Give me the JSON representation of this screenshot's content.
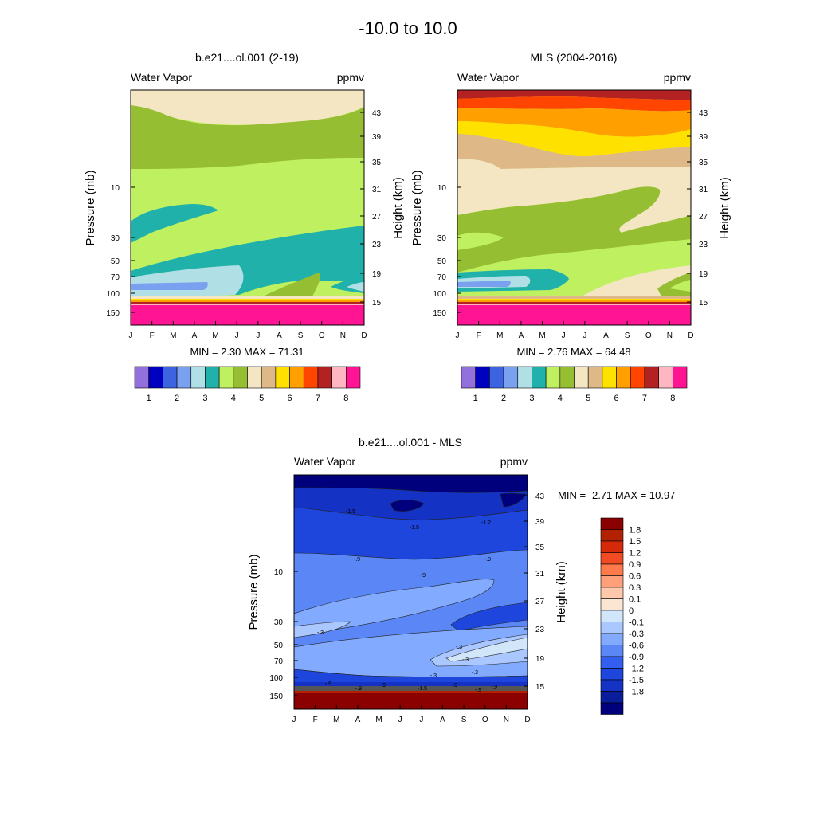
{
  "figure": {
    "title": "-10.0 to  10.0"
  },
  "chart_data": [
    {
      "type": "heatmap",
      "title": "b.e21....ol.001 (2-19)",
      "left_label": "Water Vapor",
      "right_label": "ppmv",
      "ylabel": "Pressure (mb)",
      "ylabel_right": "Height (km)",
      "x": [
        "J",
        "F",
        "M",
        "A",
        "M",
        "J",
        "J",
        "A",
        "S",
        "O",
        "N",
        "D"
      ],
      "pressure_ticks": [
        "10",
        "30",
        "50",
        "70",
        "100",
        "150"
      ],
      "height_ticks": [
        "43",
        "39",
        "35",
        "31",
        "27",
        "23",
        "19",
        "15"
      ],
      "stats": "MIN =   2.30  MAX =  71.31",
      "colorbar": {
        "colors": [
          "#9370db",
          "#0000c0",
          "#3c64e0",
          "#7aa0f0",
          "#b0e0e6",
          "#20b2aa",
          "#bff060",
          "#96be32",
          "#f5e6c3",
          "#deb887",
          "#ffe100",
          "#ffa000",
          "#ff4500",
          "#b22222",
          "#ffb6c1",
          "#ff1493"
        ],
        "labels": [
          "1",
          "2",
          "3",
          "4",
          "5",
          "6",
          "7",
          "8"
        ]
      },
      "bands": [
        {
          "level": "5.0",
          "color": "#f5e6c3"
        },
        {
          "level": "4.5",
          "color": "#96be32"
        },
        {
          "level": "4.0",
          "color": "#bff060"
        },
        {
          "level": "3.5",
          "color": "#20b2aa"
        },
        {
          "level": "3.0",
          "color": "#b0e0e6"
        },
        {
          "level": "2.5",
          "color": "#7aa0f0"
        }
      ]
    },
    {
      "type": "heatmap",
      "title": "MLS (2004-2016)",
      "left_label": "Water Vapor",
      "right_label": "ppmv",
      "ylabel": "Pressure (mb)",
      "ylabel_right": "Height (km)",
      "x": [
        "J",
        "F",
        "M",
        "A",
        "M",
        "J",
        "J",
        "A",
        "S",
        "O",
        "N",
        "D"
      ],
      "pressure_ticks": [
        "10",
        "30",
        "50",
        "70",
        "100",
        "150"
      ],
      "height_ticks": [
        "43",
        "39",
        "35",
        "31",
        "27",
        "23",
        "19",
        "15"
      ],
      "stats": "MIN =   2.76  MAX =  64.48",
      "colorbar": {
        "colors": [
          "#9370db",
          "#0000c0",
          "#3c64e0",
          "#7aa0f0",
          "#b0e0e6",
          "#20b2aa",
          "#bff060",
          "#96be32",
          "#f5e6c3",
          "#deb887",
          "#ffe100",
          "#ffa000",
          "#ff4500",
          "#b22222",
          "#ffb6c1",
          "#ff1493"
        ],
        "labels": [
          "1",
          "2",
          "3",
          "4",
          "5",
          "6",
          "7",
          "8"
        ]
      },
      "bands": [
        {
          "level": "7.0",
          "color": "#b22222"
        },
        {
          "level": "6.5",
          "color": "#ff4500"
        },
        {
          "level": "6.0",
          "color": "#ffa000"
        },
        {
          "level": "5.5",
          "color": "#ffe100"
        },
        {
          "level": "5.0",
          "color": "#deb887"
        },
        {
          "level": "4.5",
          "color": "#f5e6c3"
        },
        {
          "level": "4.0",
          "color": "#96be32"
        },
        {
          "level": "3.5",
          "color": "#bff060"
        },
        {
          "level": "3.0",
          "color": "#20b2aa"
        },
        {
          "level": "2.5",
          "color": "#b0e0e6"
        }
      ]
    },
    {
      "type": "heatmap",
      "title": "b.e21....ol.001 - MLS",
      "left_label": "Water Vapor",
      "right_label": "ppmv",
      "ylabel": "Pressure (mb)",
      "ylabel_right": "Height (km)",
      "x": [
        "J",
        "F",
        "M",
        "A",
        "M",
        "J",
        "J",
        "A",
        "S",
        "O",
        "N",
        "D"
      ],
      "pressure_ticks": [
        "10",
        "30",
        "50",
        "70",
        "100",
        "150"
      ],
      "height_ticks": [
        "43",
        "39",
        "35",
        "31",
        "27",
        "23",
        "19",
        "15"
      ],
      "stats": "MIN =  -2.71  MAX =  10.97",
      "colorbar": {
        "colors": [
          "#8b0000",
          "#b22200",
          "#d42a0a",
          "#f04b23",
          "#ff7a4a",
          "#ffa07a",
          "#ffc8aa",
          "#fae6d2",
          "#d2e6fa",
          "#aac8ff",
          "#82aaff",
          "#5a87f5",
          "#325ff0",
          "#1e46dc",
          "#1432c3",
          "#0a1e9b",
          "#00007d"
        ],
        "labels": [
          "1.8",
          "1.5",
          "1.2",
          "0.9",
          "0.6",
          "0.3",
          "0.1",
          "0",
          "-0.1",
          "-0.3",
          "-0.6",
          "-0.9",
          "-1.2",
          "-1.5",
          "-1.8"
        ]
      },
      "contour_labels": [
        "-1.5",
        "-1.5",
        "-1.2",
        "-.9",
        "-.9",
        "-.9",
        "-.3",
        "-.3",
        "-.3",
        "-.3",
        "-.3",
        "-.9",
        "-.9",
        "-.9",
        "-.9",
        "-1.5",
        "-.9",
        "-.9"
      ]
    }
  ]
}
